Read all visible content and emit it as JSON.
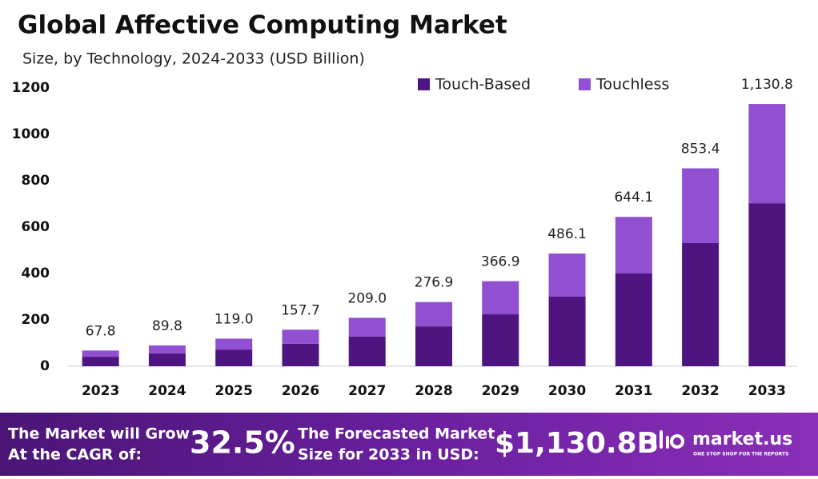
{
  "chart_data": {
    "type": "stacked-bar",
    "title": "Global Affective Computing Market",
    "subtitle": "Size, by Technology, 2024-2033 (USD Billion)",
    "categories": [
      "2023",
      "2024",
      "2025",
      "2026",
      "2027",
      "2028",
      "2029",
      "2030",
      "2031",
      "2032",
      "2033"
    ],
    "series": [
      {
        "name": "Touch-Based",
        "color": "#4e1581",
        "values": [
          41,
          55,
          72,
          97,
          128,
          172,
          224,
          300,
          400,
          531,
          703
        ]
      },
      {
        "name": "Touchless",
        "color": "#9150d1",
        "values": [
          26.8,
          34.8,
          47.0,
          60.7,
          81.0,
          104.9,
          142.9,
          186.1,
          244.1,
          322.4,
          427.8
        ]
      }
    ],
    "totals": [
      67.8,
      89.8,
      119.0,
      157.7,
      209.0,
      276.9,
      366.9,
      486.1,
      644.1,
      853.4,
      1130.8
    ],
    "total_labels": [
      "67.8",
      "89.8",
      "119.0",
      "157.7",
      "209.0",
      "276.9",
      "366.9",
      "486.1",
      "644.1",
      "853.4",
      "1,130.8"
    ],
    "ylim": [
      0,
      1200
    ],
    "yticks": [
      0,
      200,
      400,
      600,
      800,
      1000,
      1200
    ],
    "grid": false,
    "legend": "top-right"
  },
  "banner": {
    "cagr_text_1": "The Market will Grow",
    "cagr_text_2": "At the CAGR of:",
    "cagr": "32.5%",
    "forecast_text_1": "The Forecasted Market",
    "forecast_text_2": "Size for 2033 in USD:",
    "forecast": "$1,130.8B",
    "brand": "market.us",
    "tagline": "ONE STOP SHOP FOR THE REPORTS"
  }
}
